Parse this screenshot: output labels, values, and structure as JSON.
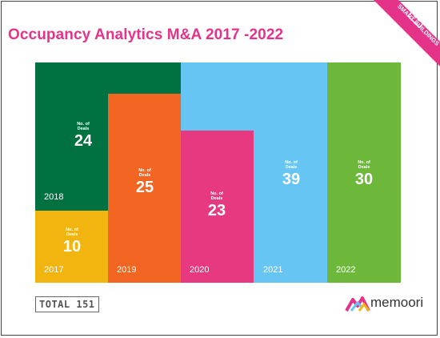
{
  "title": "Occupancy Analytics M&A 2017 -2022",
  "badge": "SMART BUILDINGS",
  "total": "TOTAL 151",
  "brand": "memoori",
  "colors": {
    "2017": "#f2b50f",
    "2018": "#007140",
    "2019": "#f26522",
    "2020": "#e6397f",
    "2021": "#66c5f3",
    "2022": "#6db83b",
    "title": "#e6338a"
  },
  "chart_data": {
    "type": "treemap",
    "title": "Occupancy Analytics M&A 2017 -2022",
    "value_caption": "No. of Deals",
    "categories": [
      "2017",
      "2018",
      "2019",
      "2020",
      "2021",
      "2022"
    ],
    "values": [
      10,
      24,
      25,
      23,
      39,
      30
    ],
    "series": [
      {
        "year": "2017",
        "caption": "No. of Deals",
        "value": 10
      },
      {
        "year": "2018",
        "caption": "No. of Deals",
        "value": 24
      },
      {
        "year": "2019",
        "caption": "No. of Deals",
        "value": 25
      },
      {
        "year": "2020",
        "caption": "No. of Deals",
        "value": 23
      },
      {
        "year": "2021",
        "caption": "No. of Deals",
        "value": 39
      },
      {
        "year": "2022",
        "caption": "No. of Deals",
        "value": 30
      }
    ],
    "total": 151
  }
}
